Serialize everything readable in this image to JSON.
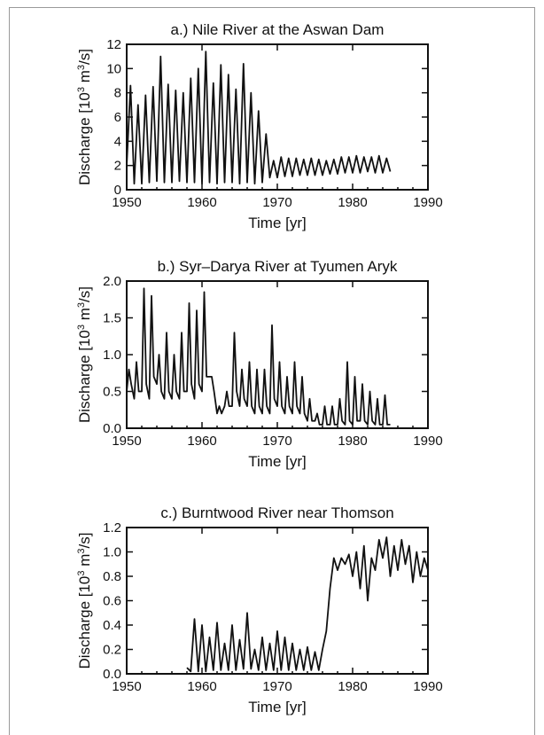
{
  "chart_data": [
    {
      "type": "line",
      "title": "a.) Nile River at the Aswan Dam",
      "xlabel": "Time [yr]",
      "ylabel": "Discharge [10^3 m^3/s]",
      "ylabel_parts": {
        "pre": "Discharge [10",
        "sup1": "3",
        "mid": " m",
        "sup2": "3",
        "post": "/s]"
      },
      "xlim": [
        1950,
        1990
      ],
      "ylim": [
        0,
        12
      ],
      "xticks": [
        1950,
        1960,
        1970,
        1980,
        1990
      ],
      "yticks": [
        0,
        2,
        4,
        6,
        8,
        10,
        12
      ],
      "ytick_labels": [
        "0",
        "2",
        "4",
        "6",
        "8",
        "10",
        "12"
      ],
      "series": [
        {
          "values_note_x": "years",
          "x": [
            1950.0,
            1950.5,
            1951.0,
            1951.5,
            1952.0,
            1952.5,
            1953.0,
            1953.5,
            1954.0,
            1954.5,
            1955.0,
            1955.5,
            1956.0,
            1956.5,
            1957.0,
            1957.5,
            1958.0,
            1958.5,
            1959.0,
            1959.5,
            1960.0,
            1960.5,
            1961.0,
            1961.5,
            1962.0,
            1962.5,
            1963.0,
            1963.5,
            1964.0,
            1964.5,
            1965.0,
            1965.5,
            1966.0,
            1966.5,
            1967.0,
            1967.5,
            1968.0,
            1968.5,
            1969.0,
            1969.5,
            1970.0,
            1970.5,
            1971.0,
            1971.5,
            1972.0,
            1972.5,
            1973.0,
            1973.5,
            1974.0,
            1974.5,
            1975.0,
            1975.5,
            1976.0,
            1976.5,
            1977.0,
            1977.5,
            1978.0,
            1978.5,
            1979.0,
            1979.5,
            1980.0,
            1980.5,
            1981.0,
            1981.5,
            1982.0,
            1982.5,
            1983.0,
            1983.5,
            1984.0,
            1984.5,
            1985.0
          ],
          "y": [
            2.0,
            8.6,
            0.5,
            7.0,
            0.5,
            7.8,
            0.6,
            8.5,
            0.7,
            11.0,
            0.6,
            8.7,
            0.6,
            8.2,
            0.7,
            8.0,
            0.6,
            9.2,
            0.6,
            10.0,
            0.5,
            11.4,
            0.6,
            8.8,
            0.5,
            10.3,
            0.6,
            9.5,
            0.6,
            8.3,
            0.5,
            10.4,
            0.6,
            8.0,
            0.5,
            6.5,
            0.6,
            4.6,
            1.0,
            2.4,
            1.0,
            2.7,
            1.1,
            2.6,
            1.1,
            2.6,
            1.2,
            2.5,
            1.2,
            2.6,
            1.2,
            2.5,
            1.2,
            2.4,
            1.3,
            2.5,
            1.3,
            2.7,
            1.4,
            2.7,
            1.4,
            2.8,
            1.4,
            2.7,
            1.5,
            2.7,
            1.4,
            2.8,
            1.4,
            2.6,
            1.5
          ]
        }
      ]
    },
    {
      "type": "line",
      "title": "b.) Syr–Darya River at Tyumen Aryk",
      "xlabel": "Time [yr]",
      "ylabel": "Discharge [10^3 m^3/s]",
      "ylabel_parts": {
        "pre": "Discharge [10",
        "sup1": "3",
        "mid": " m",
        "sup2": "3",
        "post": "/s]"
      },
      "xlim": [
        1950,
        1990
      ],
      "ylim": [
        0,
        2
      ],
      "xticks": [
        1950,
        1960,
        1970,
        1980,
        1990
      ],
      "yticks": [
        0,
        0.5,
        1.0,
        1.5,
        2.0
      ],
      "ytick_labels": [
        "0.0",
        "0.5",
        "1.0",
        "1.5",
        "2.0"
      ],
      "series": [
        {
          "x": [
            1950.0,
            1950.3,
            1950.6,
            1951.0,
            1951.3,
            1951.6,
            1952.0,
            1952.3,
            1952.6,
            1953.0,
            1953.3,
            1953.6,
            1954.0,
            1954.3,
            1954.6,
            1955.0,
            1955.3,
            1955.6,
            1956.0,
            1956.3,
            1956.6,
            1957.0,
            1957.3,
            1957.6,
            1958.0,
            1958.3,
            1958.6,
            1959.0,
            1959.3,
            1959.6,
            1960.0,
            1960.3,
            1960.6,
            1961.0,
            1961.3,
            1961.6,
            1962.0,
            1962.3,
            1962.6,
            1963.0,
            1963.3,
            1963.6,
            1964.0,
            1964.3,
            1964.6,
            1965.0,
            1965.3,
            1965.6,
            1966.0,
            1966.3,
            1966.6,
            1967.0,
            1967.3,
            1967.6,
            1968.0,
            1968.3,
            1968.6,
            1969.0,
            1969.3,
            1969.6,
            1970.0,
            1970.3,
            1970.6,
            1971.0,
            1971.3,
            1971.6,
            1972.0,
            1972.3,
            1972.6,
            1973.0,
            1973.3,
            1973.6,
            1974.0,
            1974.3,
            1974.6,
            1975.0,
            1975.3,
            1975.6,
            1976.0,
            1976.3,
            1976.6,
            1977.0,
            1977.3,
            1977.6,
            1978.0,
            1978.3,
            1978.6,
            1979.0,
            1979.3,
            1979.6,
            1980.0,
            1980.3,
            1980.6,
            1981.0,
            1981.3,
            1981.6,
            1982.0,
            1982.3,
            1982.6,
            1983.0,
            1983.3,
            1983.6,
            1984.0,
            1984.3,
            1984.6,
            1985.0
          ],
          "y": [
            0.5,
            0.8,
            0.6,
            0.4,
            0.9,
            0.5,
            0.5,
            1.9,
            0.6,
            0.4,
            1.8,
            0.7,
            0.6,
            1.0,
            0.5,
            0.4,
            1.3,
            0.5,
            0.4,
            1.0,
            0.5,
            0.4,
            1.3,
            0.5,
            0.5,
            1.7,
            0.6,
            0.4,
            1.6,
            0.6,
            0.5,
            1.85,
            0.7,
            0.7,
            0.7,
            0.5,
            0.2,
            0.3,
            0.2,
            0.3,
            0.5,
            0.3,
            0.3,
            1.3,
            0.5,
            0.3,
            0.8,
            0.4,
            0.3,
            0.9,
            0.3,
            0.2,
            0.8,
            0.3,
            0.2,
            0.8,
            0.3,
            0.2,
            1.4,
            0.4,
            0.3,
            0.9,
            0.3,
            0.2,
            0.7,
            0.3,
            0.2,
            0.9,
            0.3,
            0.2,
            0.7,
            0.2,
            0.1,
            0.4,
            0.1,
            0.1,
            0.2,
            0.05,
            0.05,
            0.3,
            0.05,
            0.05,
            0.3,
            0.05,
            0.05,
            0.4,
            0.1,
            0.05,
            0.9,
            0.1,
            0.05,
            0.7,
            0.1,
            0.1,
            0.6,
            0.1,
            0.05,
            0.5,
            0.1,
            0.05,
            0.4,
            0.05,
            0.05,
            0.45,
            0.05,
            0.05
          ]
        }
      ]
    },
    {
      "type": "line",
      "title": "c.) Burntwood River near Thomson",
      "xlabel": "Time [yr]",
      "ylabel": "Discharge [10^3 m^3/s]",
      "ylabel_parts": {
        "pre": "Discharge [10",
        "sup1": "3",
        "mid": " m",
        "sup2": "3",
        "post": "/s]"
      },
      "xlim": [
        1950,
        1990
      ],
      "ylim": [
        0,
        1.2
      ],
      "xticks": [
        1950,
        1960,
        1970,
        1980,
        1990
      ],
      "yticks": [
        0,
        0.2,
        0.4,
        0.6,
        0.8,
        1.0,
        1.2
      ],
      "ytick_labels": [
        "0.0",
        "0.2",
        "0.4",
        "0.6",
        "0.8",
        "1.0",
        "1.2"
      ],
      "series": [
        {
          "x": [
            1958.0,
            1958.5,
            1959.0,
            1959.5,
            1960.0,
            1960.5,
            1961.0,
            1961.5,
            1962.0,
            1962.5,
            1963.0,
            1963.5,
            1964.0,
            1964.5,
            1965.0,
            1965.5,
            1966.0,
            1966.5,
            1967.0,
            1967.5,
            1968.0,
            1968.5,
            1969.0,
            1969.5,
            1970.0,
            1970.5,
            1971.0,
            1971.5,
            1972.0,
            1972.5,
            1973.0,
            1973.5,
            1974.0,
            1974.5,
            1975.0,
            1975.5,
            1976.0,
            1976.5,
            1977.0,
            1977.5,
            1978.0,
            1978.5,
            1979.0,
            1979.5,
            1980.0,
            1980.5,
            1981.0,
            1981.5,
            1982.0,
            1982.5,
            1983.0,
            1983.5,
            1984.0,
            1984.5,
            1985.0,
            1985.5,
            1986.0,
            1986.5,
            1987.0,
            1987.5,
            1988.0,
            1988.5,
            1989.0,
            1989.5,
            1990.0
          ],
          "y": [
            0.05,
            0.02,
            0.45,
            0.02,
            0.4,
            0.02,
            0.3,
            0.03,
            0.42,
            0.03,
            0.25,
            0.03,
            0.4,
            0.03,
            0.28,
            0.04,
            0.5,
            0.04,
            0.2,
            0.03,
            0.3,
            0.03,
            0.25,
            0.03,
            0.35,
            0.03,
            0.3,
            0.03,
            0.25,
            0.03,
            0.2,
            0.03,
            0.22,
            0.03,
            0.18,
            0.03,
            0.2,
            0.35,
            0.7,
            0.95,
            0.85,
            0.95,
            0.9,
            0.98,
            0.8,
            1.0,
            0.7,
            1.05,
            0.6,
            0.95,
            0.85,
            1.1,
            0.95,
            1.12,
            0.8,
            1.05,
            0.85,
            1.1,
            0.9,
            1.05,
            0.75,
            1.0,
            0.8,
            0.95,
            0.85
          ]
        }
      ]
    }
  ]
}
